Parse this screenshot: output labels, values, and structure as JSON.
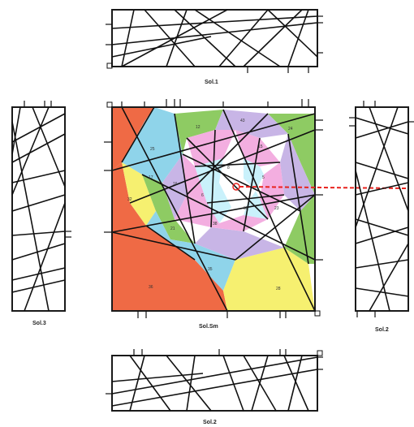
{
  "captions": {
    "top": "Sol.1",
    "left": "Sol.3",
    "right": "Sol.2",
    "center": "Sol.Sm",
    "bottom": "Sol.2"
  },
  "region_labels": [
    "25",
    "12",
    "43",
    "24",
    "17",
    "15",
    "16",
    "8",
    "6",
    "5",
    "32",
    "21",
    "38",
    "38",
    "23",
    "35",
    "36",
    "28"
  ],
  "colors": {
    "red": "#ef6a45",
    "blue": "#8fd4ea",
    "green": "#8ecb63",
    "yellow": "#f6f070",
    "lavender": "#c8b5e6",
    "pink": "#f3aee0",
    "lightblue": "#c9f1fb",
    "white": "#ffffff",
    "dashed_line": "#e8231e"
  }
}
